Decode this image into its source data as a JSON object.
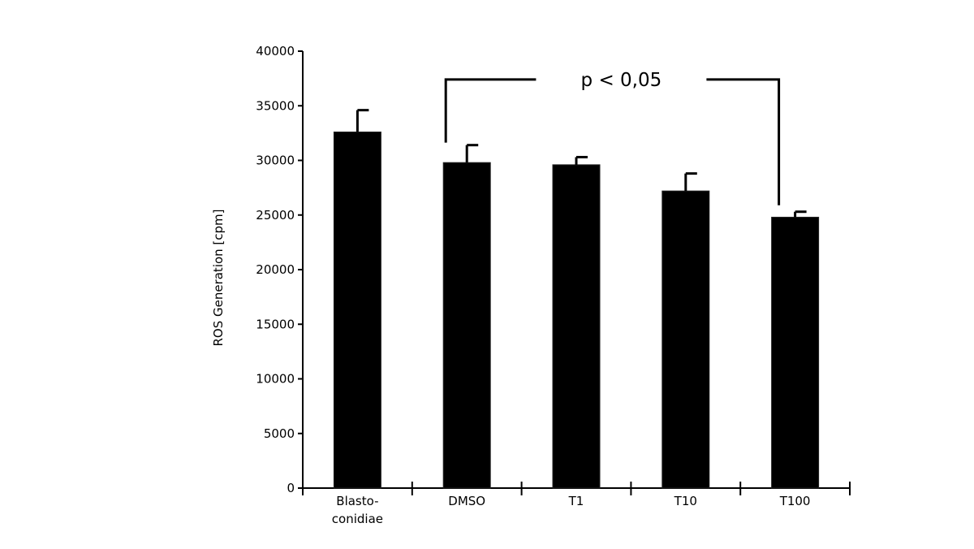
{
  "chart_data": {
    "type": "bar",
    "title": "",
    "xlabel": "",
    "ylabel": "ROS Generation [cpm]",
    "ylim": [
      0,
      40000
    ],
    "yticks": [
      0,
      5000,
      10000,
      15000,
      20000,
      25000,
      30000,
      35000,
      40000
    ],
    "categories": [
      [
        "Blasto-",
        "conidiae"
      ],
      [
        "DMSO"
      ],
      [
        "T1"
      ],
      [
        "T10"
      ],
      [
        "T100"
      ]
    ],
    "values": [
      32600,
      29800,
      29600,
      27200,
      24800
    ],
    "error_upper": [
      34600,
      31400,
      30300,
      28800,
      25300
    ],
    "bar_color": "#000000",
    "grid": false,
    "legend": "none",
    "annotations": [
      {
        "text": "p < 0,05",
        "from_category": "DMSO",
        "to_category": "T100",
        "level": 38000
      }
    ]
  }
}
